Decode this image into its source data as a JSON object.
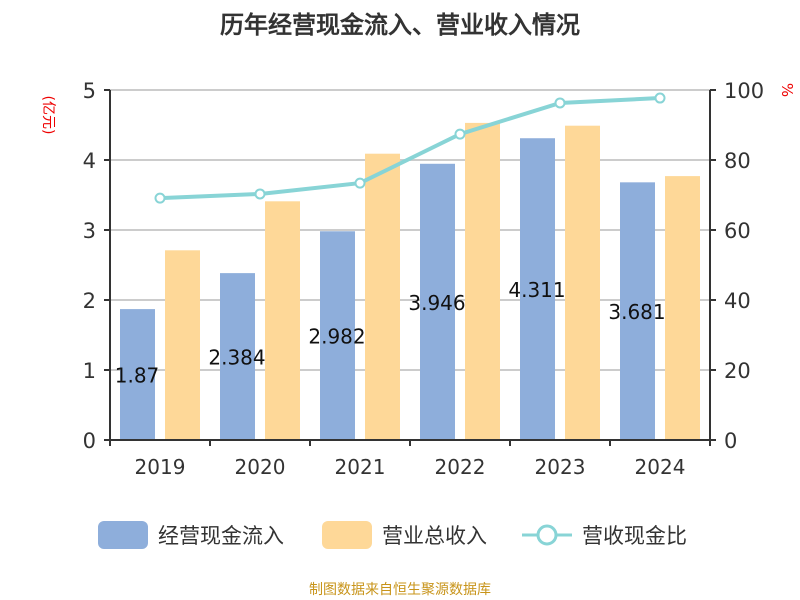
{
  "chart_data": {
    "type": "bar",
    "title": "历年经营现金流入、营业收入情况",
    "ylabel_left": "(亿元)",
    "ylabel_right": "%",
    "categories": [
      "2019",
      "2020",
      "2021",
      "2022",
      "2023",
      "2024"
    ],
    "ylim_left": [
      0,
      5
    ],
    "yticks_left": [
      0,
      1,
      2,
      3,
      4,
      5
    ],
    "ylim_right": [
      0,
      100
    ],
    "yticks_right": [
      0,
      20,
      40,
      60,
      80,
      100
    ],
    "grid": true,
    "legend_position": "bottom",
    "series": [
      {
        "name": "经营现金流入",
        "type": "bar",
        "axis": "left",
        "color": "#8eaedb",
        "values": [
          1.87,
          2.384,
          2.982,
          3.946,
          4.311,
          3.681
        ],
        "labels": [
          "1.87",
          "2.384",
          "2.982",
          "3.946",
          "4.311",
          "3.681"
        ]
      },
      {
        "name": "营业总收入",
        "type": "bar",
        "axis": "left",
        "color": "#fed898",
        "values": [
          2.71,
          3.41,
          4.09,
          4.53,
          4.49,
          3.77
        ]
      },
      {
        "name": "营收现金比",
        "type": "line",
        "axis": "right",
        "color": "#88d4d6",
        "values": [
          69.1,
          70.3,
          73.4,
          87.4,
          96.3,
          97.7
        ]
      }
    ]
  },
  "source": "制图数据来自恒生聚源数据库"
}
